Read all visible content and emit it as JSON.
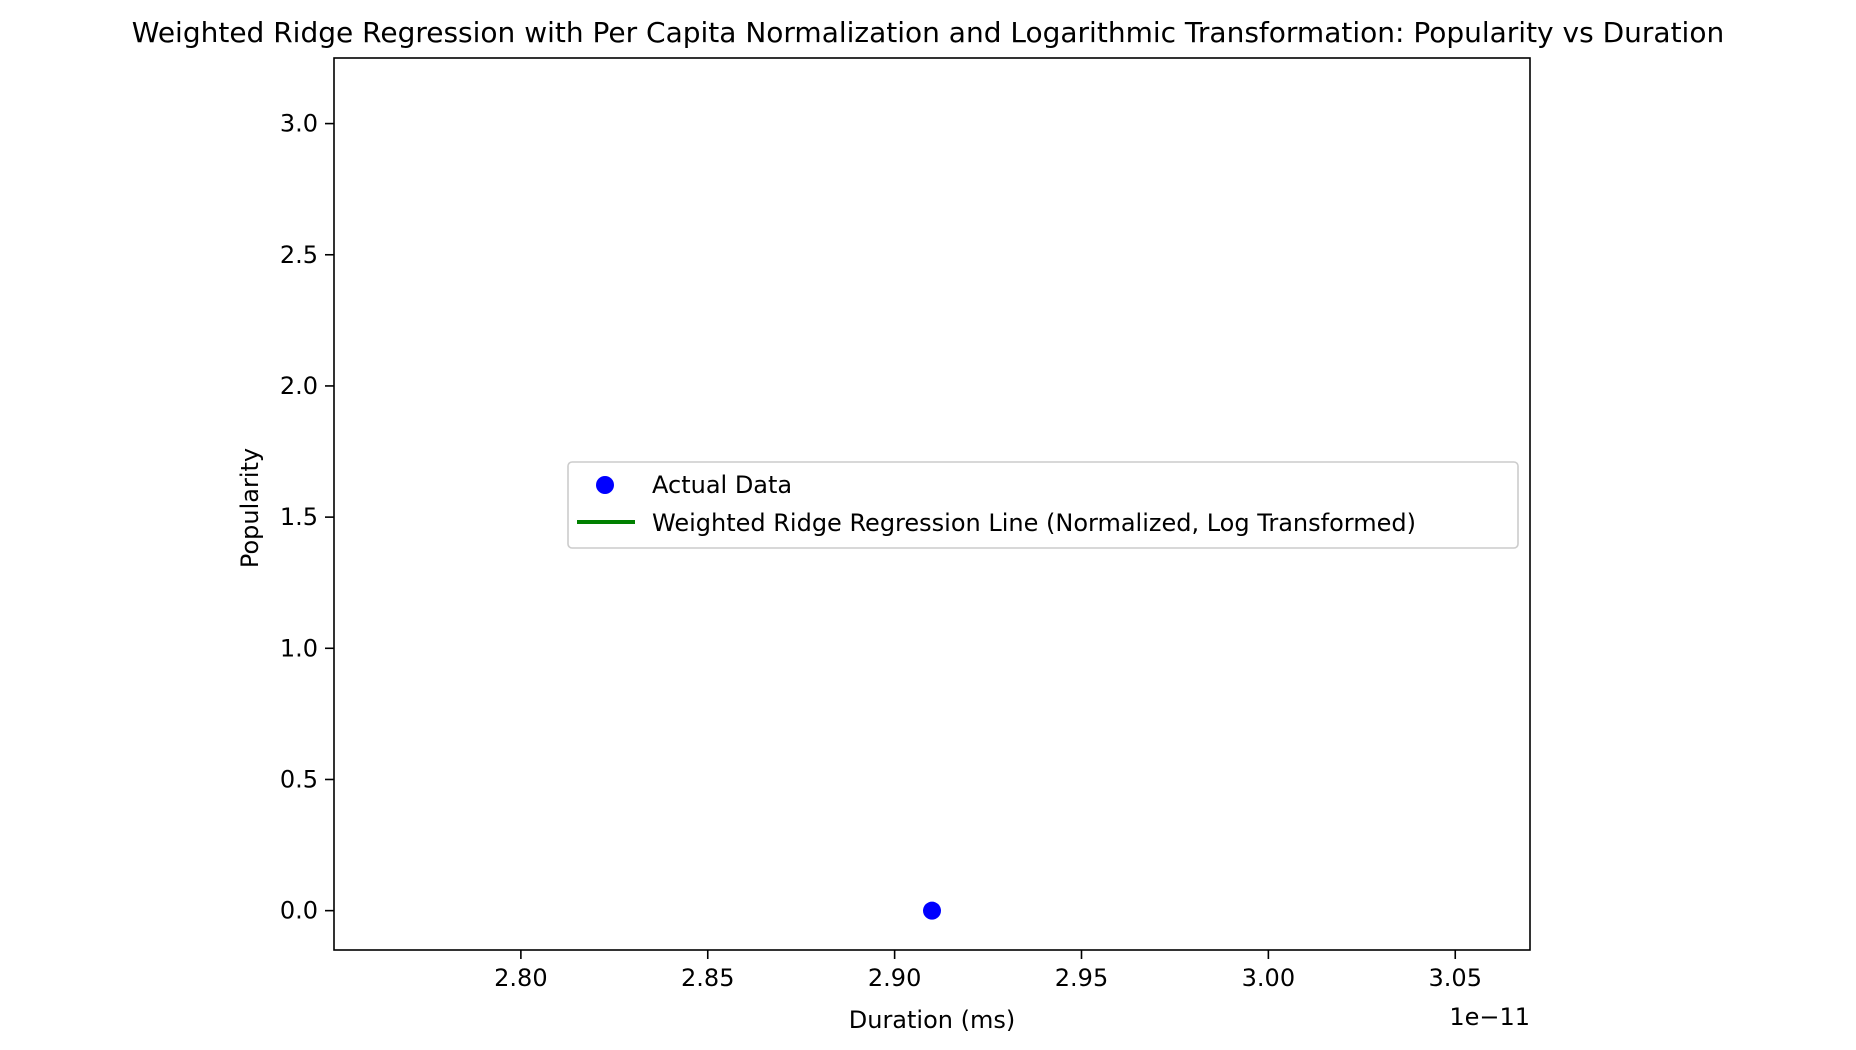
{
  "chart_data": {
    "type": "scatter",
    "title": "Weighted Ridge Regression with Per Capita Normalization and Logarithmic Transformation: Popularity vs Duration",
    "xlabel": "Duration (ms)",
    "ylabel": "Popularity",
    "x_offset_label": "1e−11",
    "xlim": [
      2.75,
      3.07
    ],
    "ylim": [
      -0.15,
      3.25
    ],
    "x_scale_exponent": -11,
    "x_ticks": [
      2.8,
      2.85,
      2.9,
      2.95,
      3.0,
      3.05
    ],
    "x_tick_labels": [
      "2.80",
      "2.85",
      "2.90",
      "2.95",
      "3.00",
      "3.05"
    ],
    "y_ticks": [
      0.0,
      0.5,
      1.0,
      1.5,
      2.0,
      2.5,
      3.0
    ],
    "y_tick_labels": [
      "0.0",
      "0.5",
      "1.0",
      "1.5",
      "2.0",
      "2.5",
      "3.0"
    ],
    "grid": false,
    "legend_position": "center-right",
    "series": [
      {
        "name": "Actual Data",
        "kind": "scatter",
        "color": "#0000ff",
        "points": [
          {
            "x": 2.91,
            "y": 0.0
          }
        ]
      },
      {
        "name": "Weighted Ridge Regression Line (Normalized, Log Transformed)",
        "kind": "line",
        "color": "#008000",
        "points": []
      }
    ]
  }
}
